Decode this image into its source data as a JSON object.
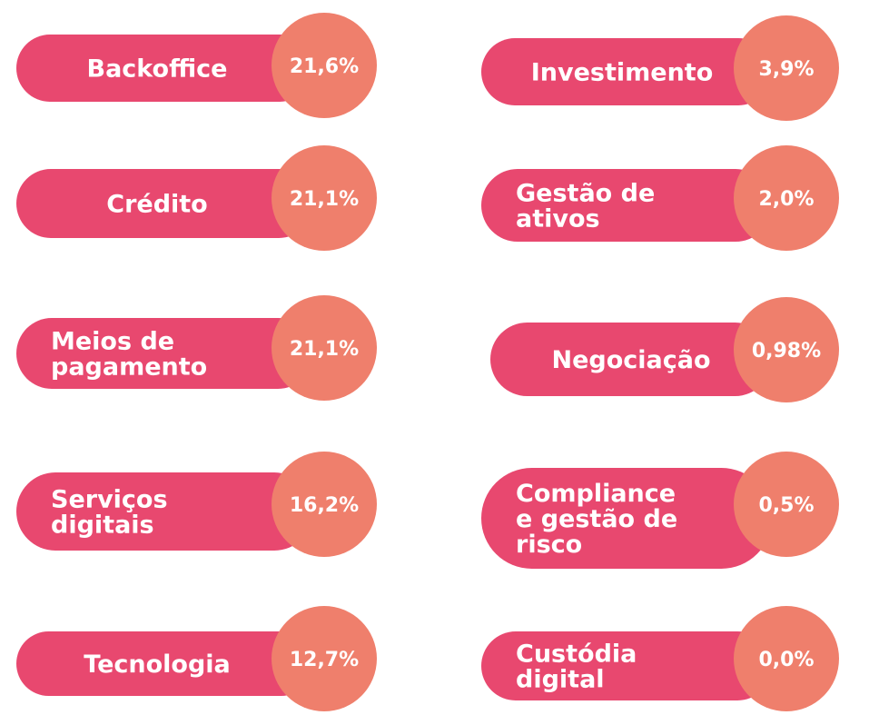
{
  "items": [
    {
      "lines": [
        "Backoffice"
      ],
      "value": "21,6%"
    },
    {
      "lines": [
        "Crédito"
      ],
      "value": "21,1%"
    },
    {
      "lines": [
        "Meios de",
        "pagamento"
      ],
      "value": "21,1%"
    },
    {
      "lines": [
        "Serviços",
        "digitais"
      ],
      "value": "16,2%"
    },
    {
      "lines": [
        "Tecnologia"
      ],
      "value": "12,7%"
    },
    {
      "lines": [
        "Investimento"
      ],
      "value": "3,9%"
    },
    {
      "lines": [
        "Gestão de",
        "ativos"
      ],
      "value": "2,0%"
    },
    {
      "lines": [
        "Negociação"
      ],
      "value": "0,98%"
    },
    {
      "lines": [
        "Compliance",
        "e gestão de",
        "risco"
      ],
      "value": "0,5%"
    },
    {
      "lines": [
        "Custódia",
        "digital"
      ],
      "value": "0,0%"
    }
  ]
}
